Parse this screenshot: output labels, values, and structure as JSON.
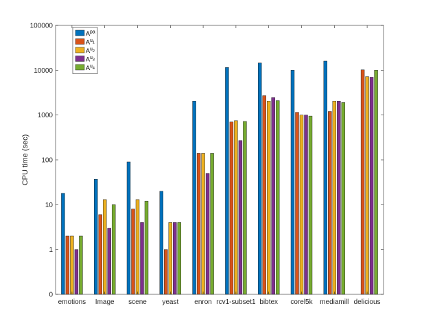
{
  "chart_data": {
    "type": "bar",
    "scale": "log",
    "ylabel": "CPU time (sec)",
    "y_ticks": [
      {
        "value": 0,
        "label": "0"
      },
      {
        "value": 1,
        "label": "1"
      },
      {
        "value": 10,
        "label": "10"
      },
      {
        "value": 100,
        "label": "100"
      },
      {
        "value": 1000,
        "label": "1000"
      },
      {
        "value": 10000,
        "label": "10000"
      },
      {
        "value": 100000,
        "label": "100000"
      }
    ],
    "categories": [
      "emotions",
      "Image",
      "scene",
      "yeast",
      "enron",
      "rcv1-subset1",
      "bibtex",
      "corel5k",
      "mediamill",
      "delicious"
    ],
    "series": [
      {
        "name": "A^pa",
        "base": "A",
        "sup": "pa",
        "subsup": "",
        "color": "#0072BD",
        "values": [
          18,
          37,
          90,
          20,
          2050,
          11500,
          14500,
          10000,
          16000,
          null
        ]
      },
      {
        "name": "A^u1",
        "base": "A",
        "sup": "u",
        "subsup": "1",
        "color": "#D95319",
        "values": [
          2,
          6,
          8,
          1,
          140,
          700,
          2700,
          1150,
          1200,
          10200
        ]
      },
      {
        "name": "A^u2",
        "base": "A",
        "sup": "u",
        "subsup": "2",
        "color": "#EDB120",
        "values": [
          2,
          13,
          13,
          4,
          140,
          750,
          2050,
          1000,
          2050,
          7200
        ]
      },
      {
        "name": "A^u3",
        "base": "A",
        "sup": "u",
        "subsup": "3",
        "color": "#7E2F8E",
        "values": [
          1,
          3,
          4,
          4,
          50,
          270,
          2450,
          1000,
          2050,
          7000
        ]
      },
      {
        "name": "A^u4",
        "base": "A",
        "sup": "u",
        "subsup": "4",
        "color": "#77AC30",
        "values": [
          2,
          10,
          12,
          4,
          140,
          720,
          2100,
          950,
          1900,
          10000
        ]
      }
    ],
    "legend": "top-left",
    "grid": false,
    "box": true
  }
}
